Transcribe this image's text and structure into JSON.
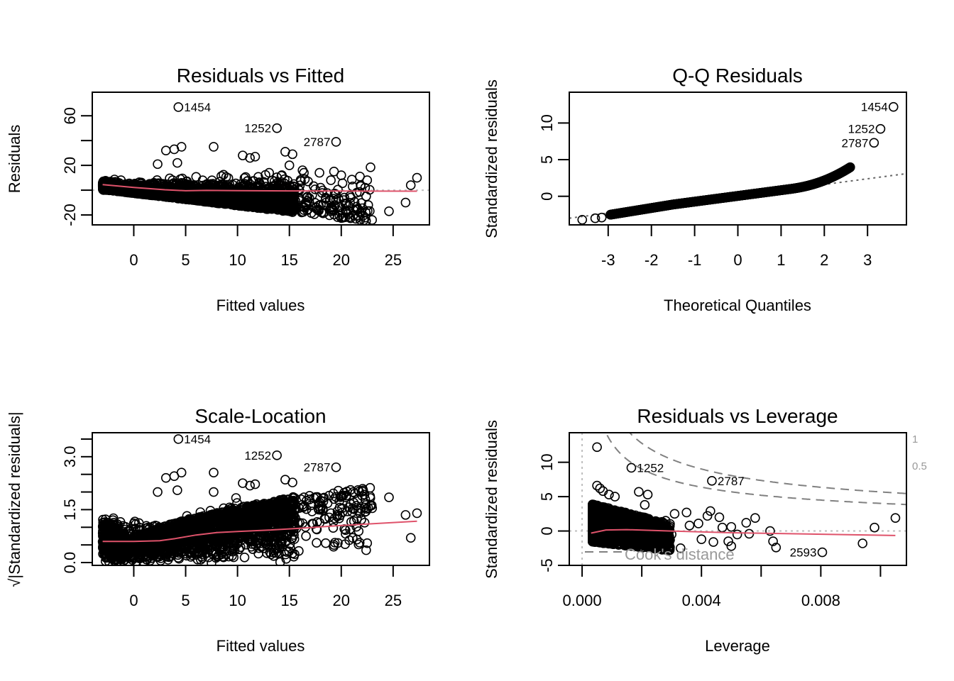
{
  "chart_data": [
    {
      "type": "scatter",
      "id": "resid-fitted",
      "title": "Residuals vs Fitted",
      "xlabel": "Fitted values",
      "ylabel": "Residuals",
      "xlim": [
        -4,
        28.5
      ],
      "ylim": [
        -28,
        79
      ],
      "xticks": [
        0,
        5,
        10,
        15,
        20,
        25
      ],
      "xtick_labels": [
        "0",
        "5",
        "10",
        "15",
        "20",
        "25"
      ],
      "yticks": [
        -20,
        0,
        20,
        40,
        60
      ],
      "ytick_labels": [
        "-20",
        "",
        "20",
        "",
        "60"
      ],
      "refline": {
        "type": "h",
        "value": 0
      },
      "smoother": {
        "x": [
          -3,
          0,
          3,
          5,
          7,
          10,
          15,
          20,
          27.3
        ],
        "y": [
          4.5,
          2.2,
          0.3,
          -0.5,
          -0.2,
          -0.4,
          -0.6,
          -0.7,
          -0.8
        ]
      },
      "outliers": [
        {
          "x": 4.3,
          "y": 67,
          "label": "1454",
          "label_side": "right"
        },
        {
          "x": 13.8,
          "y": 50,
          "label": "1252",
          "label_side": "left"
        },
        {
          "x": 19.5,
          "y": 39,
          "label": "2787",
          "label_side": "left"
        },
        {
          "x": 3.1,
          "y": 32
        },
        {
          "x": 3.9,
          "y": 33
        },
        {
          "x": 4.6,
          "y": 35
        },
        {
          "x": 7.7,
          "y": 35
        },
        {
          "x": 10.5,
          "y": 28
        },
        {
          "x": 11.2,
          "y": 26
        },
        {
          "x": 11.7,
          "y": 27
        },
        {
          "x": 14.6,
          "y": 31
        },
        {
          "x": 15.3,
          "y": 29
        },
        {
          "x": 2.3,
          "y": 21
        },
        {
          "x": 4.2,
          "y": 22
        },
        {
          "x": 15.0,
          "y": 20
        },
        {
          "x": 16.4,
          "y": 14
        },
        {
          "x": 17.9,
          "y": 14
        },
        {
          "x": 19.3,
          "y": 15
        },
        {
          "x": 20.0,
          "y": 12
        },
        {
          "x": 21.8,
          "y": 11
        },
        {
          "x": 22.5,
          "y": 8
        },
        {
          "x": 27.3,
          "y": 10
        },
        {
          "x": 26.7,
          "y": 4
        },
        {
          "x": 26.2,
          "y": -10
        },
        {
          "x": 24.6,
          "y": -17
        },
        {
          "x": 20.5,
          "y": -18
        },
        {
          "x": 22.6,
          "y": -12
        },
        {
          "x": 16.4,
          "y": -16
        },
        {
          "x": 17.6,
          "y": -14
        },
        {
          "x": 18.5,
          "y": -6
        },
        {
          "x": 19.5,
          "y": -8
        },
        {
          "x": 20.3,
          "y": -6
        },
        {
          "x": 20.5,
          "y": -11
        },
        {
          "x": 21.5,
          "y": -2
        },
        {
          "x": 22.4,
          "y": -5
        },
        {
          "x": 18.0,
          "y": 2
        },
        {
          "x": 17.2,
          "y": -4
        },
        {
          "x": 21.1,
          "y": 3
        },
        {
          "x": 22.3,
          "y": 2
        },
        {
          "x": 19.0,
          "y": 8
        },
        {
          "x": 16.8,
          "y": 7
        }
      ],
      "cloud": {
        "n": 2600,
        "seed": 11,
        "kind": "resid"
      }
    },
    {
      "type": "scatter",
      "id": "qq",
      "title": "Q-Q Residuals",
      "xlabel": "Theoretical Quantiles",
      "ylabel": "Standardized residuals",
      "xlim": [
        -3.9,
        3.9
      ],
      "ylim": [
        -3.9,
        14.2
      ],
      "xticks": [
        -3,
        -2,
        -1,
        0,
        1,
        2,
        3
      ],
      "xtick_labels": [
        "-3",
        "-2",
        "-1",
        "0",
        "1",
        "2",
        "3"
      ],
      "yticks": [
        0,
        5,
        10
      ],
      "ytick_labels": [
        "0",
        "5",
        "10"
      ],
      "refline": {
        "type": "ab",
        "intercept": 0.05,
        "slope": 0.78
      },
      "outliers": [
        {
          "x": 3.6,
          "y": 12.2,
          "label": "1454",
          "label_side": "left"
        },
        {
          "x": 3.3,
          "y": 9.2,
          "label": "1252",
          "label_side": "left"
        },
        {
          "x": 3.15,
          "y": 7.3,
          "label": "2787",
          "label_side": "left"
        },
        {
          "x": -3.6,
          "y": -3.2
        },
        {
          "x": -3.3,
          "y": -3.0
        },
        {
          "x": -3.15,
          "y": -2.9
        }
      ],
      "cloud": {
        "n": 1400,
        "seed": 5,
        "kind": "qq"
      }
    },
    {
      "type": "scatter",
      "id": "scale-location",
      "title": "Scale-Location",
      "xlabel": "Fitted values",
      "ylabel": "√|Standardized residuals|",
      "xlim": [
        -4,
        28.5
      ],
      "ylim": [
        -0.08,
        3.68
      ],
      "xticks": [
        0,
        5,
        10,
        15,
        20,
        25
      ],
      "xtick_labels": [
        "0",
        "5",
        "10",
        "15",
        "20",
        "25"
      ],
      "yticks": [
        0.0,
        0.5,
        1.0,
        1.5,
        2.0,
        2.5,
        3.0,
        3.5
      ],
      "ytick_labels": [
        "0.0",
        "",
        "",
        "1.5",
        "",
        "",
        "3.0",
        ""
      ],
      "smoother": {
        "x": [
          -3,
          0,
          2.5,
          4,
          6,
          8,
          10,
          13,
          16,
          20,
          27.3
        ],
        "y": [
          0.6,
          0.6,
          0.62,
          0.68,
          0.78,
          0.85,
          0.88,
          0.92,
          0.97,
          1.05,
          1.17
        ]
      },
      "outliers": [
        {
          "x": 4.3,
          "y": 3.5,
          "label": "1454",
          "label_side": "right"
        },
        {
          "x": 13.8,
          "y": 3.04,
          "label": "1252",
          "label_side": "left"
        },
        {
          "x": 19.5,
          "y": 2.7,
          "label": "2787",
          "label_side": "left"
        },
        {
          "x": 3.1,
          "y": 2.4
        },
        {
          "x": 3.9,
          "y": 2.45
        },
        {
          "x": 4.6,
          "y": 2.55
        },
        {
          "x": 7.7,
          "y": 2.55
        },
        {
          "x": 10.5,
          "y": 2.25
        },
        {
          "x": 11.2,
          "y": 2.18
        },
        {
          "x": 11.7,
          "y": 2.22
        },
        {
          "x": 14.6,
          "y": 2.35
        },
        {
          "x": 15.3,
          "y": 2.27
        },
        {
          "x": 2.3,
          "y": 2.0
        },
        {
          "x": 4.2,
          "y": 2.05
        },
        {
          "x": 7.7,
          "y": 2.0
        },
        {
          "x": 16.4,
          "y": 1.85
        },
        {
          "x": 17.9,
          "y": 1.7
        },
        {
          "x": 19.3,
          "y": 1.8
        },
        {
          "x": 20.5,
          "y": 1.9
        },
        {
          "x": 24.6,
          "y": 1.85
        },
        {
          "x": 26.2,
          "y": 1.35
        },
        {
          "x": 27.3,
          "y": 1.4
        },
        {
          "x": 26.7,
          "y": 0.7
        },
        {
          "x": 22.6,
          "y": 1.55
        },
        {
          "x": 21.8,
          "y": 1.4
        },
        {
          "x": 22.5,
          "y": 0.55
        },
        {
          "x": 22.4,
          "y": 0.35
        },
        {
          "x": 18.5,
          "y": 0.55
        },
        {
          "x": 19.3,
          "y": 0.5
        },
        {
          "x": 20.3,
          "y": 0.95
        },
        {
          "x": 21.1,
          "y": 0.7
        },
        {
          "x": 21.5,
          "y": 0.65
        },
        {
          "x": 17.2,
          "y": 1.1
        },
        {
          "x": 18.1,
          "y": 1.6
        },
        {
          "x": 19.8,
          "y": 1.25
        },
        {
          "x": 20.6,
          "y": 1.45
        },
        {
          "x": 16.6,
          "y": 0.75
        },
        {
          "x": 17.6,
          "y": 0.95
        },
        {
          "x": -2.8,
          "y": 0.95
        },
        {
          "x": -2.0,
          "y": 1.2
        },
        {
          "x": -1.5,
          "y": 0.8
        }
      ],
      "cloud": {
        "n": 2600,
        "seed": 11,
        "kind": "scale"
      }
    },
    {
      "type": "scatter",
      "id": "resid-leverage",
      "title": "Residuals vs Leverage",
      "xlabel": "Leverage",
      "ylabel": "Standardized residuals",
      "xlim": [
        -0.00043,
        0.01087
      ],
      "ylim": [
        -5.0,
        14.3
      ],
      "xticks": [
        0.0,
        0.002,
        0.004,
        0.006,
        0.008,
        0.01
      ],
      "xtick_labels": [
        "0.000",
        "",
        "0.004",
        "",
        "0.008",
        ""
      ],
      "yticks": [
        -5,
        0,
        5,
        10
      ],
      "ytick_labels": [
        "-5",
        "0",
        "5",
        "10"
      ],
      "refline": {
        "type": "hv",
        "h": 0,
        "v": 0
      },
      "smoother": {
        "x": [
          0.0003,
          0.0008,
          0.0015,
          0.003,
          0.005,
          0.007,
          0.0105
        ],
        "y": [
          -0.3,
          0.15,
          0.2,
          0.0,
          -0.25,
          -0.4,
          -0.65
        ]
      },
      "cooks": {
        "legend": "Cook's distance",
        "levels": [
          "1",
          "0.5"
        ],
        "nparam": 3
      },
      "outliers": [
        {
          "x": 0.0005,
          "y": 12.2
        },
        {
          "x": 0.00165,
          "y": 9.2,
          "label": "1252",
          "label_side": "right"
        },
        {
          "x": 0.00435,
          "y": 7.3,
          "label": "2787",
          "label_side": "right"
        },
        {
          "x": 0.00805,
          "y": -3.1,
          "label": "2593",
          "label_side": "left"
        },
        {
          "x": 0.0005,
          "y": 6.6
        },
        {
          "x": 0.0006,
          "y": 6.2
        },
        {
          "x": 0.0007,
          "y": 5.8
        },
        {
          "x": 0.0009,
          "y": 5.3
        },
        {
          "x": 0.0011,
          "y": 5.0
        },
        {
          "x": 0.0019,
          "y": 5.7
        },
        {
          "x": 0.0022,
          "y": 5.3
        },
        {
          "x": 0.0021,
          "y": 3.8
        },
        {
          "x": 0.0028,
          "y": 1.5
        },
        {
          "x": 0.0031,
          "y": 2.5
        },
        {
          "x": 0.0035,
          "y": 2.7
        },
        {
          "x": 0.0039,
          "y": 1.1
        },
        {
          "x": 0.0042,
          "y": 2.2
        },
        {
          "x": 0.0043,
          "y": 2.9
        },
        {
          "x": 0.0046,
          "y": 2.0
        },
        {
          "x": 0.0047,
          "y": 0.5
        },
        {
          "x": 0.005,
          "y": 0.6
        },
        {
          "x": 0.0049,
          "y": -1.5
        },
        {
          "x": 0.005,
          "y": -2.2
        },
        {
          "x": 0.0052,
          "y": -0.5
        },
        {
          "x": 0.0055,
          "y": 1.2
        },
        {
          "x": 0.0058,
          "y": 1.9
        },
        {
          "x": 0.0056,
          "y": -0.4
        },
        {
          "x": 0.0063,
          "y": 0.0
        },
        {
          "x": 0.0064,
          "y": -1.5
        },
        {
          "x": 0.0065,
          "y": -2.4
        },
        {
          "x": 0.004,
          "y": -1.2
        },
        {
          "x": 0.0044,
          "y": -1.6
        },
        {
          "x": 0.0033,
          "y": -2.5
        },
        {
          "x": 0.0029,
          "y": -2.8
        },
        {
          "x": 0.0036,
          "y": 0.8
        },
        {
          "x": 0.0094,
          "y": -1.8
        },
        {
          "x": 0.0098,
          "y": 0.5
        },
        {
          "x": 0.0105,
          "y": 1.9
        },
        {
          "x": 0.003,
          "y": -0.5
        },
        {
          "x": 0.0027,
          "y": -1.0
        }
      ],
      "cloud": {
        "n": 2200,
        "seed": 17,
        "kind": "leverage"
      }
    }
  ],
  "colors": {
    "points": "#000000",
    "smoother": "#DF536B",
    "refline": "#BEBEBE",
    "cooks": "#808080",
    "axes": "#000000"
  }
}
